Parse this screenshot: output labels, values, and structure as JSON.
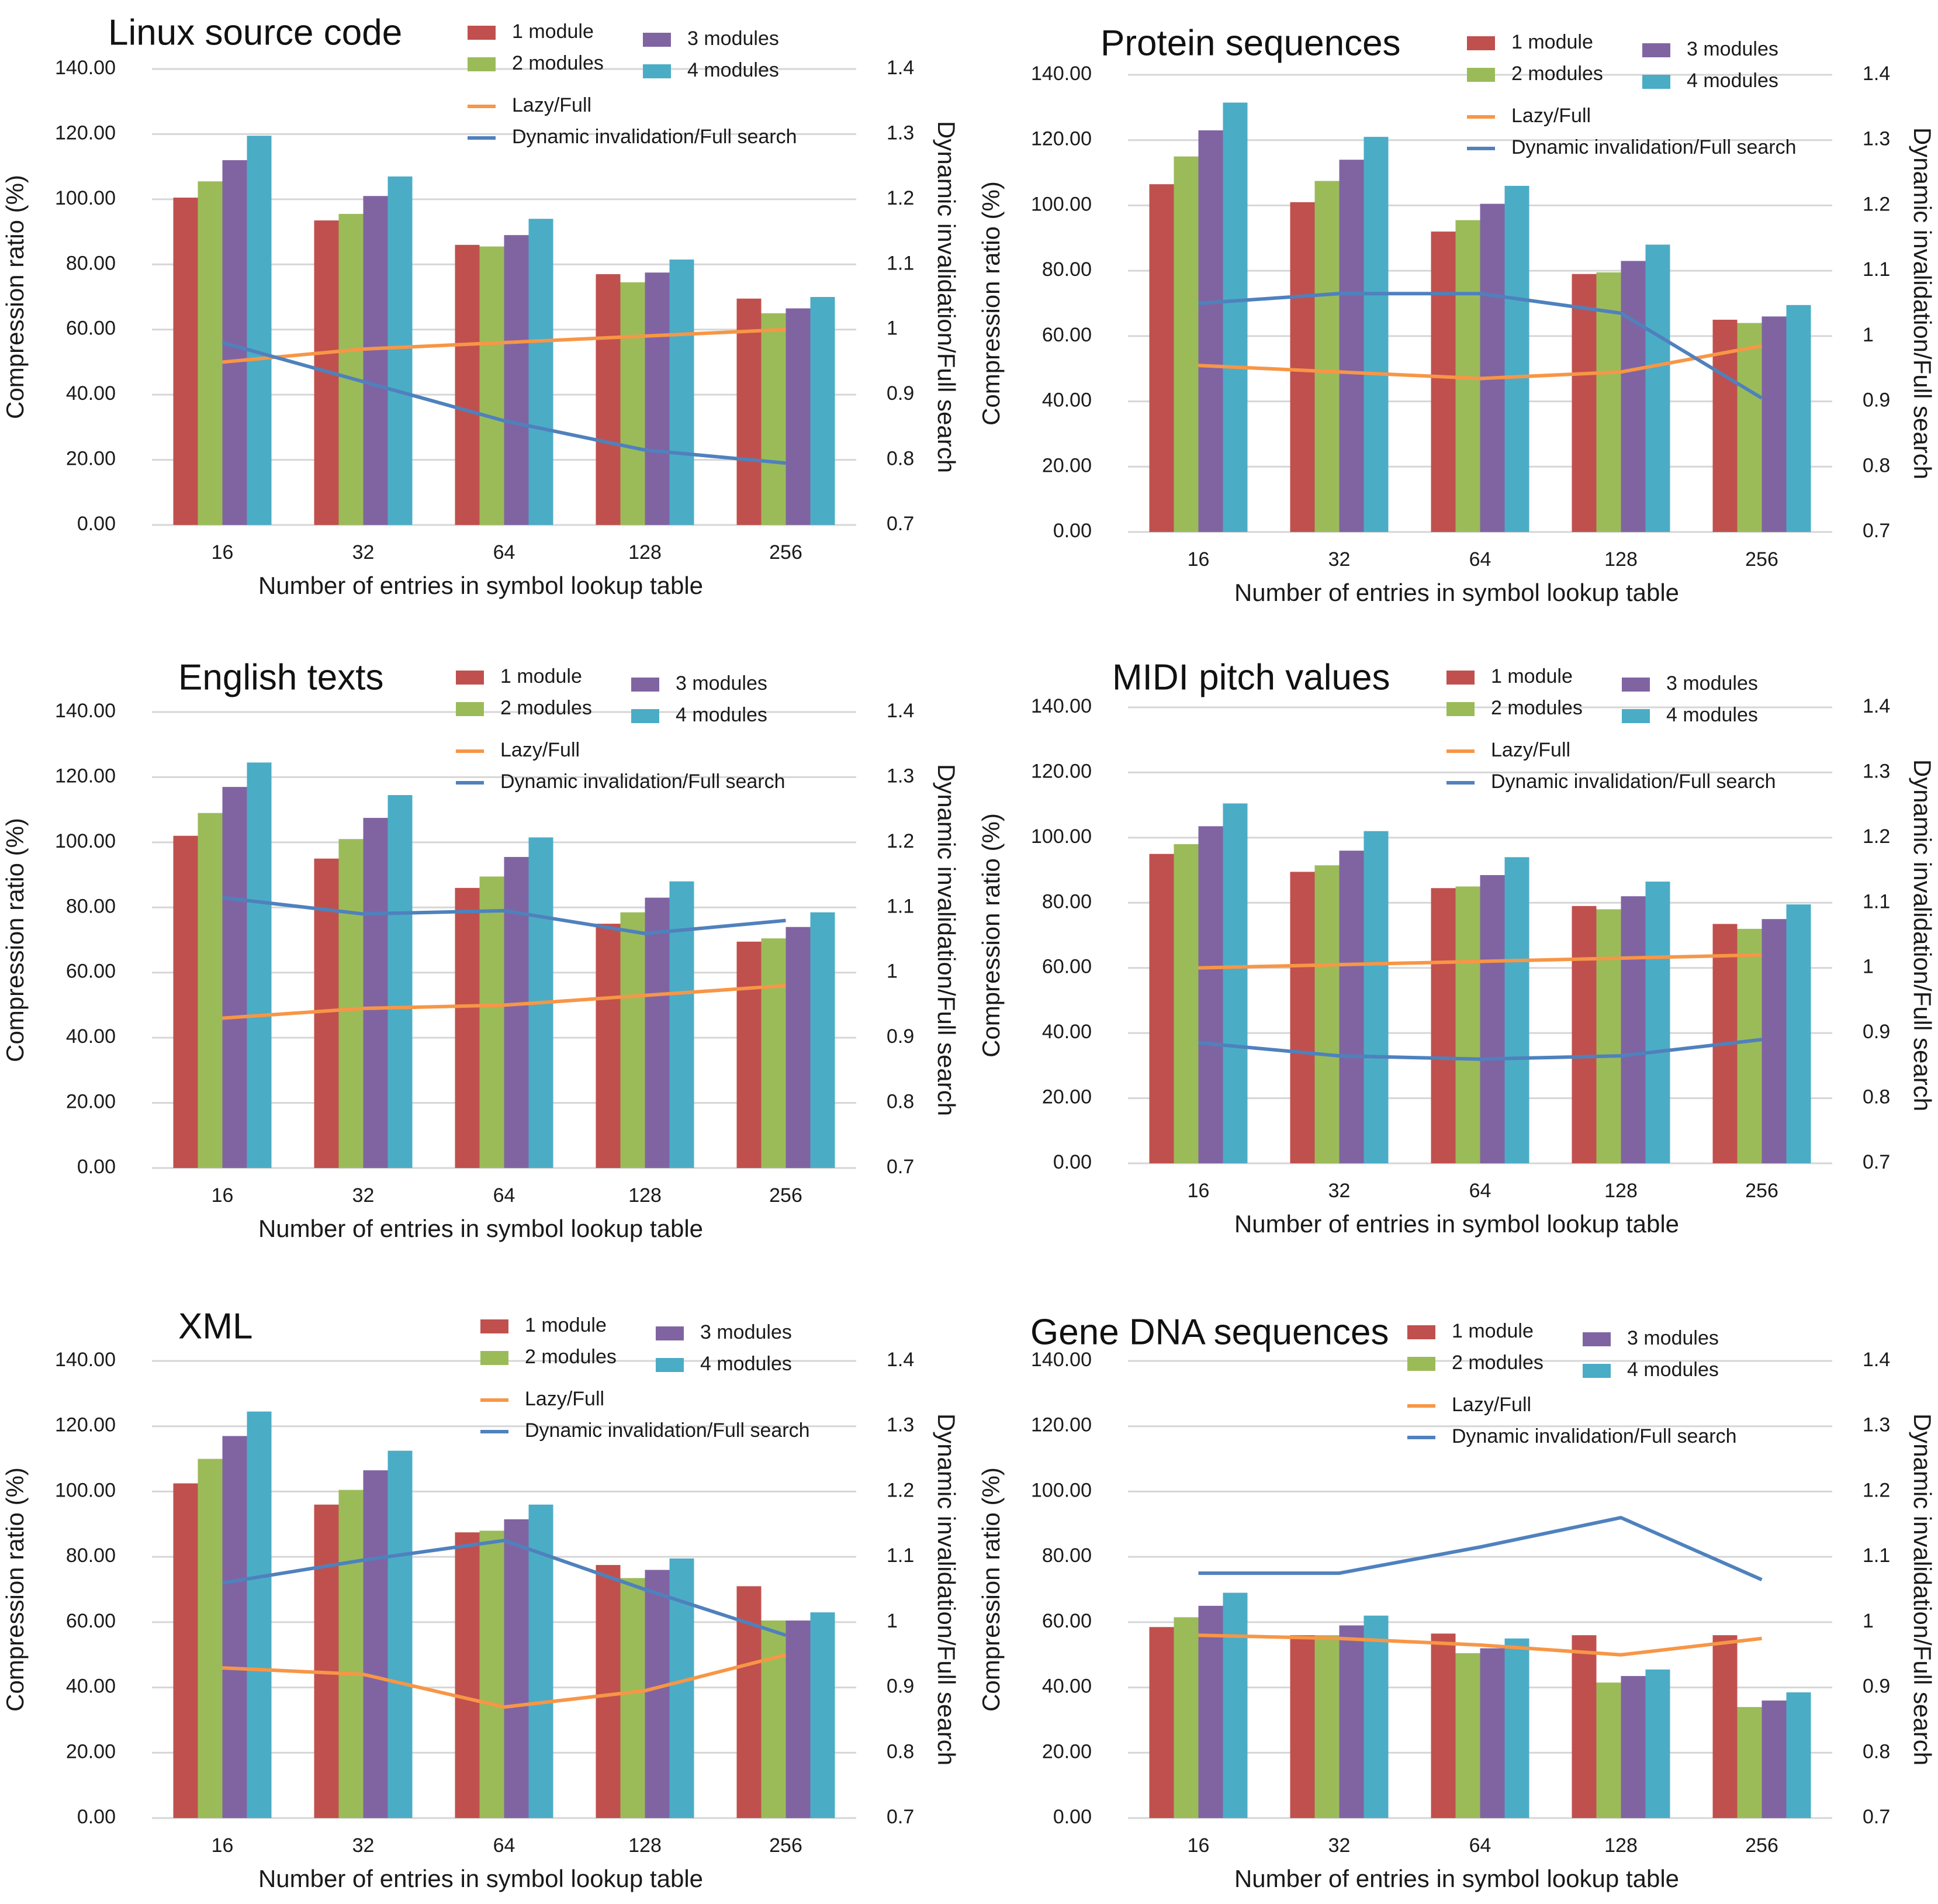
{
  "colors": {
    "module1": "#c0504d",
    "module2": "#9bbb59",
    "module3": "#8064a2",
    "module4": "#4bacc6",
    "lazy": "#f79646",
    "dynamic": "#4f81bd",
    "grid": "#d6d6d6"
  },
  "chart_data": [
    {
      "type": "bar",
      "title": "Linux source code",
      "categories": [
        "16",
        "32",
        "64",
        "128",
        "256"
      ],
      "series": [
        {
          "name": "1 module",
          "values": [
            100.5,
            93.5,
            86.0,
            77.0,
            69.5
          ]
        },
        {
          "name": "2 modules",
          "values": [
            105.5,
            95.5,
            85.5,
            74.5,
            65.0
          ]
        },
        {
          "name": "3 modules",
          "values": [
            112.0,
            101.0,
            89.0,
            77.5,
            66.5
          ]
        },
        {
          "name": "4 modules",
          "values": [
            119.5,
            107.0,
            94.0,
            81.5,
            70.0
          ]
        }
      ],
      "lines": [
        {
          "name": "Lazy/Full",
          "values": [
            0.95,
            0.97,
            0.98,
            0.99,
            1.0
          ]
        },
        {
          "name": "Dynamic invalidation/Full search",
          "values": [
            0.98,
            0.92,
            0.86,
            0.815,
            0.795
          ]
        }
      ],
      "xlabel": "Number of entries in symbol lookup table",
      "ylabel": "Compression ratio (%)",
      "y2label": "Dynamic invalidation/Full search",
      "ylim": [
        0,
        140
      ],
      "y2lim": [
        0.7,
        1.4
      ],
      "yticks": [
        "0.00",
        "20.00",
        "40.00",
        "60.00",
        "80.00",
        "100.00",
        "120.00",
        "140.00"
      ],
      "y2ticks": [
        "0.7",
        "0.8",
        "0.9",
        "1",
        "1.1",
        "1.2",
        "1.3",
        "1.4"
      ]
    },
    {
      "type": "bar",
      "title": "Protein sequences",
      "categories": [
        "16",
        "32",
        "64",
        "128",
        "256"
      ],
      "series": [
        {
          "name": "1 module",
          "values": [
            106.5,
            101.0,
            92.0,
            79.0,
            65.0
          ]
        },
        {
          "name": "2 modules",
          "values": [
            115.0,
            107.5,
            95.5,
            79.5,
            64.0
          ]
        },
        {
          "name": "3 modules",
          "values": [
            123.0,
            114.0,
            100.5,
            83.0,
            66.0
          ]
        },
        {
          "name": "4 modules",
          "values": [
            131.5,
            121.0,
            106.0,
            88.0,
            69.5
          ]
        }
      ],
      "lines": [
        {
          "name": "Lazy/Full",
          "values": [
            0.955,
            0.945,
            0.935,
            0.945,
            0.985
          ]
        },
        {
          "name": "Dynamic invalidation/Full search",
          "values": [
            1.05,
            1.065,
            1.065,
            1.035,
            0.905
          ]
        }
      ],
      "xlabel": "Number of entries in symbol lookup table",
      "ylabel": "Compression ratio (%)",
      "y2label": "Dynamic invalidation/Full search",
      "ylim": [
        0,
        140
      ],
      "y2lim": [
        0.7,
        1.4
      ],
      "yticks": [
        "0.00",
        "20.00",
        "40.00",
        "60.00",
        "80.00",
        "100.00",
        "120.00",
        "140.00"
      ],
      "y2ticks": [
        "0.7",
        "0.8",
        "0.9",
        "1",
        "1.1",
        "1.2",
        "1.3",
        "1.4"
      ]
    },
    {
      "type": "bar",
      "title": "English texts",
      "categories": [
        "16",
        "32",
        "64",
        "128",
        "256"
      ],
      "series": [
        {
          "name": "1 module",
          "values": [
            102.0,
            95.0,
            86.0,
            75.0,
            69.5
          ]
        },
        {
          "name": "2 modules",
          "values": [
            109.0,
            101.0,
            89.5,
            78.5,
            70.5
          ]
        },
        {
          "name": "3 modules",
          "values": [
            117.0,
            107.5,
            95.5,
            83.0,
            74.0
          ]
        },
        {
          "name": "4 modules",
          "values": [
            124.5,
            114.5,
            101.5,
            88.0,
            78.5
          ]
        }
      ],
      "lines": [
        {
          "name": "Lazy/Full",
          "values": [
            0.93,
            0.945,
            0.95,
            0.965,
            0.98
          ]
        },
        {
          "name": "Dynamic invalidation/Full search",
          "values": [
            1.115,
            1.09,
            1.095,
            1.06,
            1.08
          ]
        }
      ],
      "xlabel": "Number of entries in symbol lookup table",
      "ylabel": "Compression ratio (%)",
      "y2label": "Dynamic invalidation/Full search",
      "ylim": [
        0,
        140
      ],
      "y2lim": [
        0.7,
        1.4
      ],
      "yticks": [
        "0.00",
        "20.00",
        "40.00",
        "60.00",
        "80.00",
        "100.00",
        "120.00",
        "140.00"
      ],
      "y2ticks": [
        "0.7",
        "0.8",
        "0.9",
        "1",
        "1.1",
        "1.2",
        "1.3",
        "1.4"
      ]
    },
    {
      "type": "bar",
      "title": "MIDI pitch values",
      "categories": [
        "16",
        "32",
        "64",
        "128",
        "256"
      ],
      "series": [
        {
          "name": "1 module",
          "values": [
            95.0,
            89.5,
            84.5,
            79.0,
            73.5
          ]
        },
        {
          "name": "2 modules",
          "values": [
            98.0,
            91.5,
            85.0,
            78.0,
            72.0
          ]
        },
        {
          "name": "3 modules",
          "values": [
            103.5,
            96.0,
            88.5,
            82.0,
            75.0
          ]
        },
        {
          "name": "4 modules",
          "values": [
            110.5,
            102.0,
            94.0,
            86.5,
            79.5
          ]
        }
      ],
      "lines": [
        {
          "name": "Lazy/Full",
          "values": [
            1.0,
            1.005,
            1.01,
            1.015,
            1.02
          ]
        },
        {
          "name": "Dynamic invalidation/Full search",
          "values": [
            0.885,
            0.865,
            0.86,
            0.865,
            0.89
          ]
        }
      ],
      "xlabel": "Number of entries in symbol lookup table",
      "ylabel": "Compression ratio (%)",
      "y2label": "Dynamic invalidation/Full search",
      "ylim": [
        0,
        140
      ],
      "y2lim": [
        0.7,
        1.4
      ],
      "yticks": [
        "0.00",
        "20.00",
        "40.00",
        "60.00",
        "80.00",
        "100.00",
        "120.00",
        "140.00"
      ],
      "y2ticks": [
        "0.7",
        "0.8",
        "0.9",
        "1",
        "1.1",
        "1.2",
        "1.3",
        "1.4"
      ]
    },
    {
      "type": "bar",
      "title": "XML",
      "categories": [
        "16",
        "32",
        "64",
        "128",
        "256"
      ],
      "series": [
        {
          "name": "1 module",
          "values": [
            102.5,
            96.0,
            87.5,
            77.5,
            71.0
          ]
        },
        {
          "name": "2 modules",
          "values": [
            110.0,
            100.5,
            88.0,
            73.5,
            60.5
          ]
        },
        {
          "name": "3 modules",
          "values": [
            117.0,
            106.5,
            91.5,
            76.0,
            60.5
          ]
        },
        {
          "name": "4 modules",
          "values": [
            124.5,
            112.5,
            96.0,
            79.5,
            63.0
          ]
        }
      ],
      "lines": [
        {
          "name": "Lazy/Full",
          "values": [
            0.93,
            0.92,
            0.87,
            0.895,
            0.95
          ]
        },
        {
          "name": "Dynamic invalidation/Full search",
          "values": [
            1.06,
            1.095,
            1.125,
            1.05,
            0.98
          ]
        }
      ],
      "xlabel": "Number of entries in symbol lookup table",
      "ylabel": "Compression ratio (%)",
      "y2label": "Dynamic invalidation/Full search",
      "ylim": [
        0,
        140
      ],
      "y2lim": [
        0.7,
        1.4
      ],
      "yticks": [
        "0.00",
        "20.00",
        "40.00",
        "60.00",
        "80.00",
        "100.00",
        "120.00",
        "140.00"
      ],
      "y2ticks": [
        "0.7",
        "0.8",
        "0.9",
        "1",
        "1.1",
        "1.2",
        "1.3",
        "1.4"
      ]
    },
    {
      "type": "bar",
      "title": "Gene DNA sequences",
      "categories": [
        "16",
        "32",
        "64",
        "128",
        "256"
      ],
      "series": [
        {
          "name": "1 module",
          "values": [
            58.5,
            56.0,
            56.5,
            56.0,
            56.0
          ]
        },
        {
          "name": "2 modules",
          "values": [
            61.5,
            56.0,
            50.5,
            41.5,
            34.0
          ]
        },
        {
          "name": "3 modules",
          "values": [
            65.0,
            59.0,
            52.0,
            43.5,
            36.0
          ]
        },
        {
          "name": "4 modules",
          "values": [
            69.0,
            62.0,
            55.0,
            45.5,
            38.5
          ]
        }
      ],
      "lines": [
        {
          "name": "Lazy/Full",
          "values": [
            0.98,
            0.975,
            0.965,
            0.95,
            0.975
          ]
        },
        {
          "name": "Dynamic invalidation/Full search",
          "values": [
            1.075,
            1.075,
            1.115,
            1.16,
            1.065
          ]
        }
      ],
      "xlabel": "Number of entries in symbol lookup table",
      "ylabel": "Compression ratio (%)",
      "y2label": "Dynamic invalidation/Full search",
      "ylim": [
        0,
        140
      ],
      "y2lim": [
        0.7,
        1.4
      ],
      "yticks": [
        "0.00",
        "20.00",
        "40.00",
        "60.00",
        "80.00",
        "100.00",
        "120.00",
        "140.00"
      ],
      "y2ticks": [
        "0.7",
        "0.8",
        "0.9",
        "1",
        "1.1",
        "1.2",
        "1.3",
        "1.4"
      ]
    }
  ]
}
